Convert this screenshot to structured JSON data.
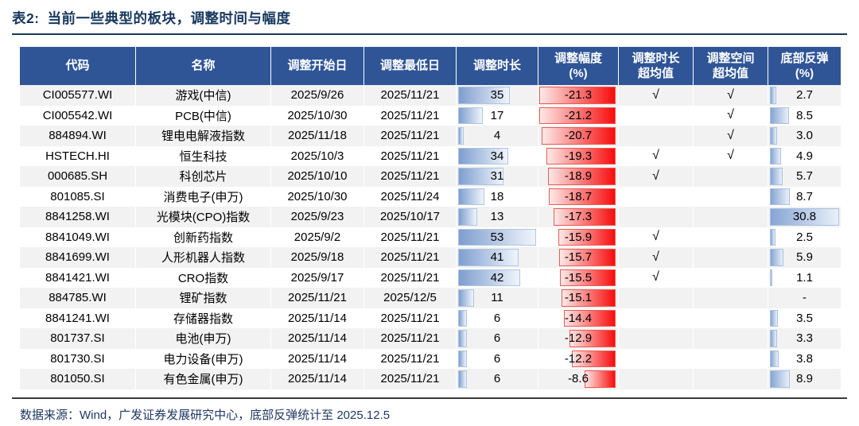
{
  "title": {
    "tag": "表2:",
    "text": "当前一些典型的板块，调整时间与幅度"
  },
  "table": {
    "headers": [
      "代码",
      "名称",
      "调整开始日",
      "调整最低日",
      "调整时长",
      "调整幅度\n(%)",
      "调整时长\n超均值",
      "调整空间\n超均值",
      "底部反弹\n(%)"
    ],
    "rows": [
      {
        "code": "CI005577.WI",
        "name": "游戏(中信)",
        "start_date": "2025/9/26",
        "low_date": "2025/11/21",
        "duration": 35,
        "adj_pct": -21.3,
        "duration_above_avg": "√",
        "space_above_avg": "√",
        "rebound": "2.7"
      },
      {
        "code": "CI005542.WI",
        "name": "PCB(中信)",
        "start_date": "2025/10/30",
        "low_date": "2025/11/21",
        "duration": 17,
        "adj_pct": -21.2,
        "duration_above_avg": "",
        "space_above_avg": "√",
        "rebound": "8.5"
      },
      {
        "code": "884894.WI",
        "name": "锂电电解液指数",
        "start_date": "2025/11/18",
        "low_date": "2025/11/21",
        "duration": 4,
        "adj_pct": -20.7,
        "duration_above_avg": "",
        "space_above_avg": "√",
        "rebound": "3.0"
      },
      {
        "code": "HSTECH.HI",
        "name": "恒生科技",
        "start_date": "2025/10/3",
        "low_date": "2025/11/21",
        "duration": 34,
        "adj_pct": -19.3,
        "duration_above_avg": "√",
        "space_above_avg": "√",
        "rebound": "4.9"
      },
      {
        "code": "000685.SH",
        "name": "科创芯片",
        "start_date": "2025/10/10",
        "low_date": "2025/11/21",
        "duration": 31,
        "adj_pct": -18.9,
        "duration_above_avg": "√",
        "space_above_avg": "",
        "rebound": "5.7"
      },
      {
        "code": "801085.SI",
        "name": "消费电子(申万)",
        "start_date": "2025/10/30",
        "low_date": "2025/11/24",
        "duration": 18,
        "adj_pct": -18.7,
        "duration_above_avg": "",
        "space_above_avg": "",
        "rebound": "8.7"
      },
      {
        "code": "8841258.WI",
        "name": "光模块(CPO)指数",
        "start_date": "2025/9/23",
        "low_date": "2025/10/17",
        "duration": 13,
        "adj_pct": -17.3,
        "duration_above_avg": "",
        "space_above_avg": "",
        "rebound": "30.8"
      },
      {
        "code": "8841049.WI",
        "name": "创新药指数",
        "start_date": "2025/9/2",
        "low_date": "2025/11/21",
        "duration": 53,
        "adj_pct": -15.9,
        "duration_above_avg": "√",
        "space_above_avg": "",
        "rebound": "2.5"
      },
      {
        "code": "8841699.WI",
        "name": "人形机器人指数",
        "start_date": "2025/9/18",
        "low_date": "2025/11/21",
        "duration": 41,
        "adj_pct": -15.7,
        "duration_above_avg": "√",
        "space_above_avg": "",
        "rebound": "5.9"
      },
      {
        "code": "8841421.WI",
        "name": "CRO指数",
        "start_date": "2025/9/17",
        "low_date": "2025/11/21",
        "duration": 42,
        "adj_pct": -15.5,
        "duration_above_avg": "√",
        "space_above_avg": "",
        "rebound": "1.1"
      },
      {
        "code": "884785.WI",
        "name": "锂矿指数",
        "start_date": "2025/11/21",
        "low_date": "2025/12/5",
        "duration": 11,
        "adj_pct": -15.1,
        "duration_above_avg": "",
        "space_above_avg": "",
        "rebound": "-"
      },
      {
        "code": "8841241.WI",
        "name": "存储器指数",
        "start_date": "2025/11/14",
        "low_date": "2025/11/21",
        "duration": 6,
        "adj_pct": -14.4,
        "duration_above_avg": "",
        "space_above_avg": "",
        "rebound": "3.5"
      },
      {
        "code": "801737.SI",
        "name": "电池(申万)",
        "start_date": "2025/11/14",
        "low_date": "2025/11/21",
        "duration": 6,
        "adj_pct": -12.9,
        "duration_above_avg": "",
        "space_above_avg": "",
        "rebound": "3.3"
      },
      {
        "code": "801730.SI",
        "name": "电力设备(申万)",
        "start_date": "2025/11/14",
        "low_date": "2025/11/21",
        "duration": 6,
        "adj_pct": -12.2,
        "duration_above_avg": "",
        "space_above_avg": "",
        "rebound": "3.8"
      },
      {
        "code": "801050.SI",
        "name": "有色金属(申万)",
        "start_date": "2025/11/14",
        "low_date": "2025/11/21",
        "duration": 6,
        "adj_pct": -8.6,
        "duration_above_avg": "",
        "space_above_avg": "",
        "rebound": "8.9"
      }
    ]
  },
  "footer": {
    "source": "数据来源：Wind，广发证券发展研究中心，底部反弹统计至 2025.12.5"
  },
  "symbols": {
    "check": "√",
    "no_data": "-"
  },
  "colors": {
    "header_bg": "#2F5597",
    "stripe_gray": "#F2F2F2",
    "title_navy": "#17375E",
    "footer_navy": "#1F3864",
    "duration_bar_blue": "#7E9ECF",
    "rebound_bar_blue": "#86A5D3",
    "adj_pct_bar_red": "#F70D0D"
  }
}
